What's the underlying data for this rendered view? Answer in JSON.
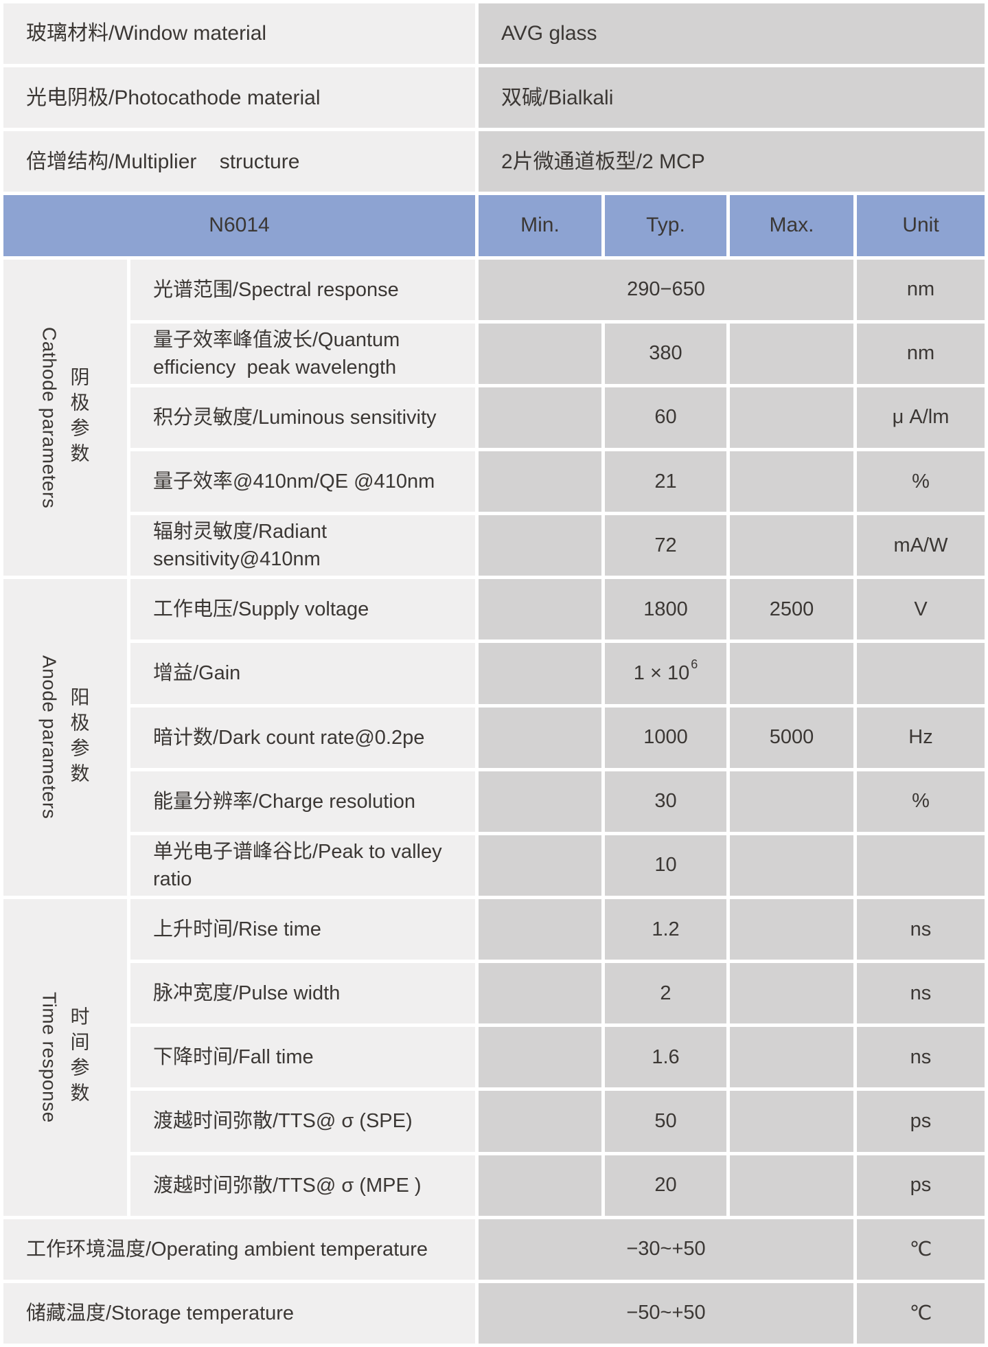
{
  "colors": {
    "header_blue": "#8da3d2",
    "label_cell_gray": "#f0efef",
    "value_cell_gray": "#d3d2d2",
    "divider_white": "#ffffff",
    "text": "#3b3734"
  },
  "top_rows": [
    {
      "label": "玻璃材料/Window material",
      "value": "AVG glass"
    },
    {
      "label": "光电阴极/Photocathode material",
      "value": "双碱/Bialkali"
    },
    {
      "label": "倍增结构/Multiplier    structure",
      "value": "2片微通道板型/2 MCP"
    }
  ],
  "header": {
    "model": "N6014",
    "min": "Min.",
    "typ": "Typ.",
    "max": "Max.",
    "unit": "Unit"
  },
  "groups": [
    {
      "zh": "阴极参数",
      "en": "Cathode parameters"
    },
    {
      "zh": "阳极参数",
      "en": "Anode parameters"
    },
    {
      "zh": "时间参数",
      "en": "Time response"
    }
  ],
  "rows": [
    {
      "label": "光谱范围/Spectral response",
      "range": "290−650",
      "unit": "nm"
    },
    {
      "label": "量子效率峰值波长/Quantum\nefficiency  peak wavelength",
      "typ": "380",
      "unit": "nm"
    },
    {
      "label": "积分灵敏度/Luminous sensitivity",
      "typ": "60",
      "unit": "μ A/lm"
    },
    {
      "label": "量子效率@410nm/QE @410nm",
      "typ": "21",
      "unit": "%"
    },
    {
      "label": "辐射灵敏度/Radiant\nsensitivity@410nm",
      "typ": "72",
      "unit": "mA/W"
    },
    {
      "label": "工作电压/Supply voltage",
      "typ": "1800",
      "max": "2500",
      "unit": "V"
    },
    {
      "label": "增益/Gain",
      "typ": "1 × 10",
      "typ_sup": "6"
    },
    {
      "label": "暗计数/Dark count rate@0.2pe",
      "typ": "1000",
      "max": "5000",
      "unit": "Hz"
    },
    {
      "label": "能量分辨率/Charge resolution",
      "typ": "30",
      "unit": "%"
    },
    {
      "label": "单光电子谱峰谷比/Peak to valley\nratio",
      "typ": "10"
    },
    {
      "label": "上升时间/Rise time",
      "typ": "1.2",
      "unit": "ns"
    },
    {
      "label": "脉冲宽度/Pulse width",
      "typ": "2",
      "unit": "ns"
    },
    {
      "label": "下降时间/Fall time",
      "typ": "1.6",
      "unit": "ns"
    },
    {
      "label": "渡越时间弥散/TTS@ σ (SPE)",
      "typ": "50",
      "unit": "ps"
    },
    {
      "label": "渡越时间弥散/TTS@ σ (MPE )",
      "typ": "20",
      "unit": "ps"
    }
  ],
  "bottom_rows": [
    {
      "label": "工作环境温度/Operating ambient temperature",
      "range": "−30~+50",
      "unit": "℃"
    },
    {
      "label": "储藏温度/Storage temperature",
      "range": "−50~+50",
      "unit": "℃"
    }
  ]
}
